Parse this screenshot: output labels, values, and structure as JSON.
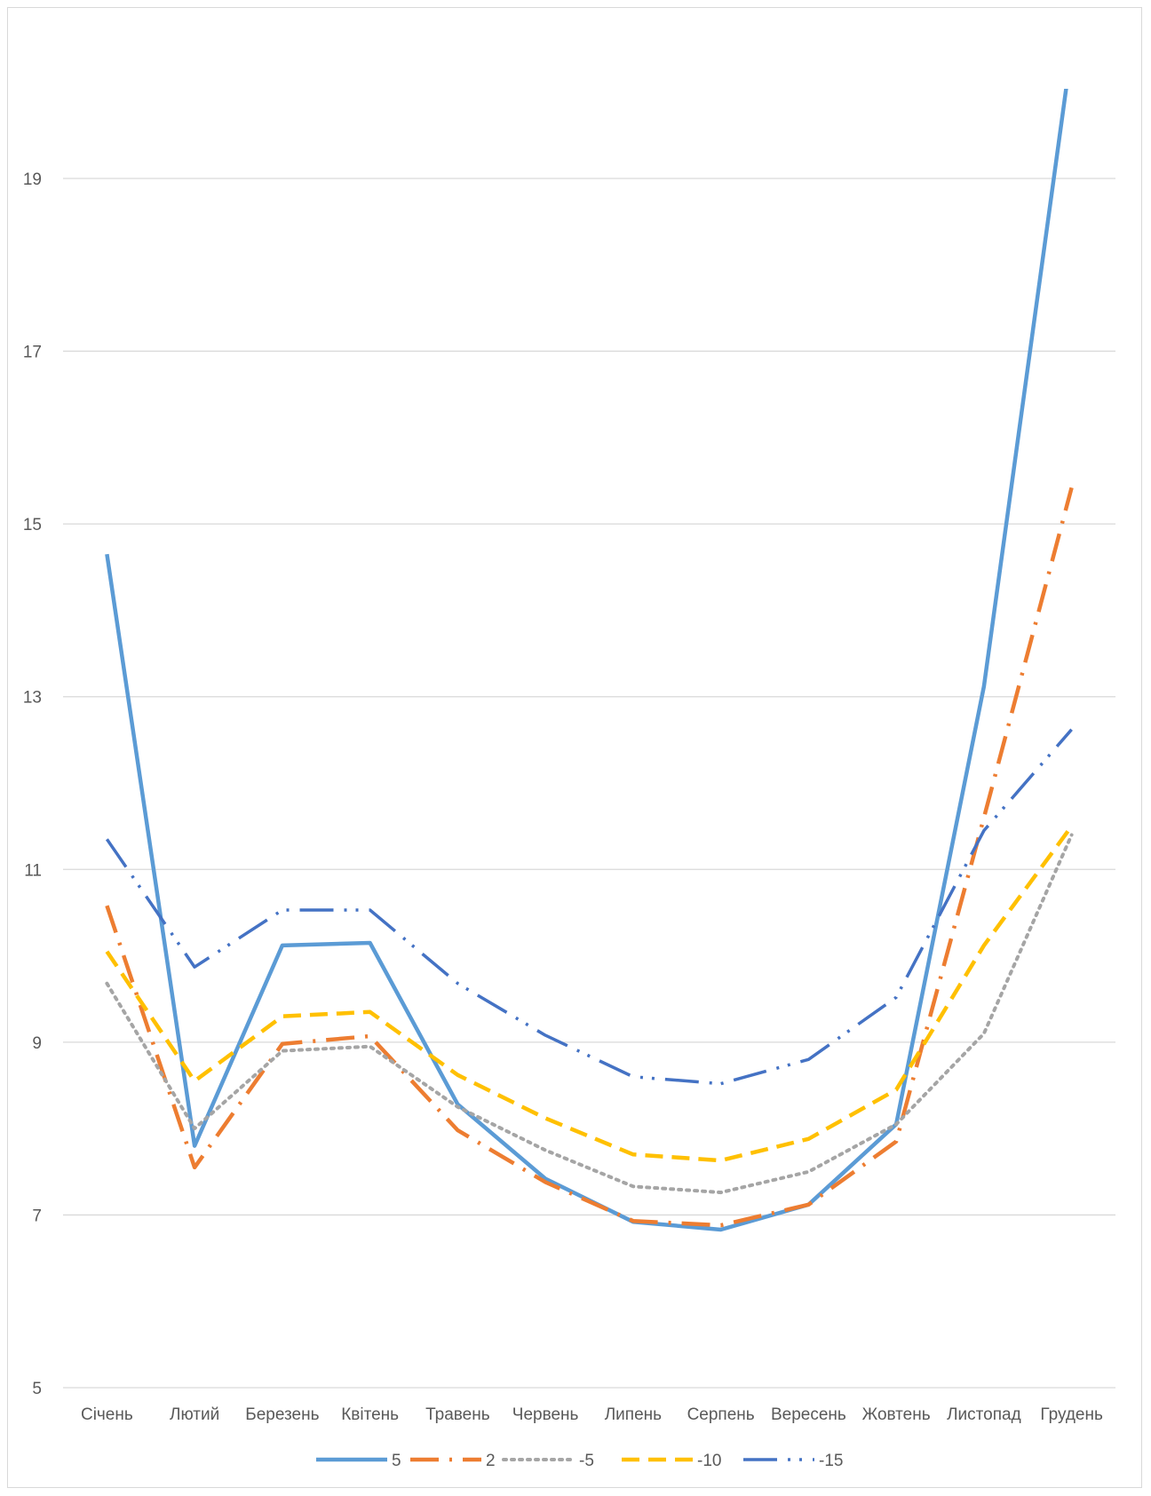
{
  "chart_data": {
    "type": "line",
    "title": "",
    "xlabel": "",
    "ylabel": "",
    "categories": [
      "Січень",
      "Лютий",
      "Березень",
      "Квітень",
      "Травень",
      "Червень",
      "Липень",
      "Серпень",
      "Вересень",
      "Жовтень",
      "Листопад",
      "Грудень"
    ],
    "y_ticks": [
      "5",
      "7",
      "9",
      "11",
      "13",
      "15",
      "17",
      "19"
    ],
    "ylim": [
      5,
      20.5
    ],
    "grid": true,
    "legend_position": "bottom",
    "series": [
      {
        "name": "5",
        "color": "#5B9BD5",
        "style": "solid",
        "values": [
          14.65,
          7.8,
          10.12,
          10.15,
          8.28,
          7.42,
          6.92,
          6.83,
          7.12,
          8.05,
          13.12,
          20.5
        ]
      },
      {
        "name": "2",
        "color": "#ED7D31",
        "style": "dashdot",
        "values": [
          10.58,
          7.55,
          8.98,
          9.07,
          7.98,
          7.38,
          6.93,
          6.88,
          7.12,
          7.85,
          11.6,
          15.42
        ]
      },
      {
        "name": "-5",
        "color": "#A5A5A5",
        "style": "dotted",
        "values": [
          9.68,
          8.0,
          8.9,
          8.95,
          8.25,
          7.75,
          7.33,
          7.26,
          7.5,
          8.05,
          9.1,
          11.4
        ]
      },
      {
        "name": "-10",
        "color": "#FFC000",
        "style": "dashed",
        "values": [
          10.05,
          8.55,
          9.3,
          9.35,
          8.62,
          8.12,
          7.7,
          7.63,
          7.88,
          8.45,
          10.12,
          11.5
        ]
      },
      {
        "name": "-15",
        "color": "#4472C4",
        "style": "longdashdotdot",
        "values": [
          11.35,
          9.87,
          10.53,
          10.53,
          9.68,
          9.08,
          8.6,
          8.52,
          8.8,
          9.52,
          11.45,
          12.62
        ]
      }
    ]
  }
}
